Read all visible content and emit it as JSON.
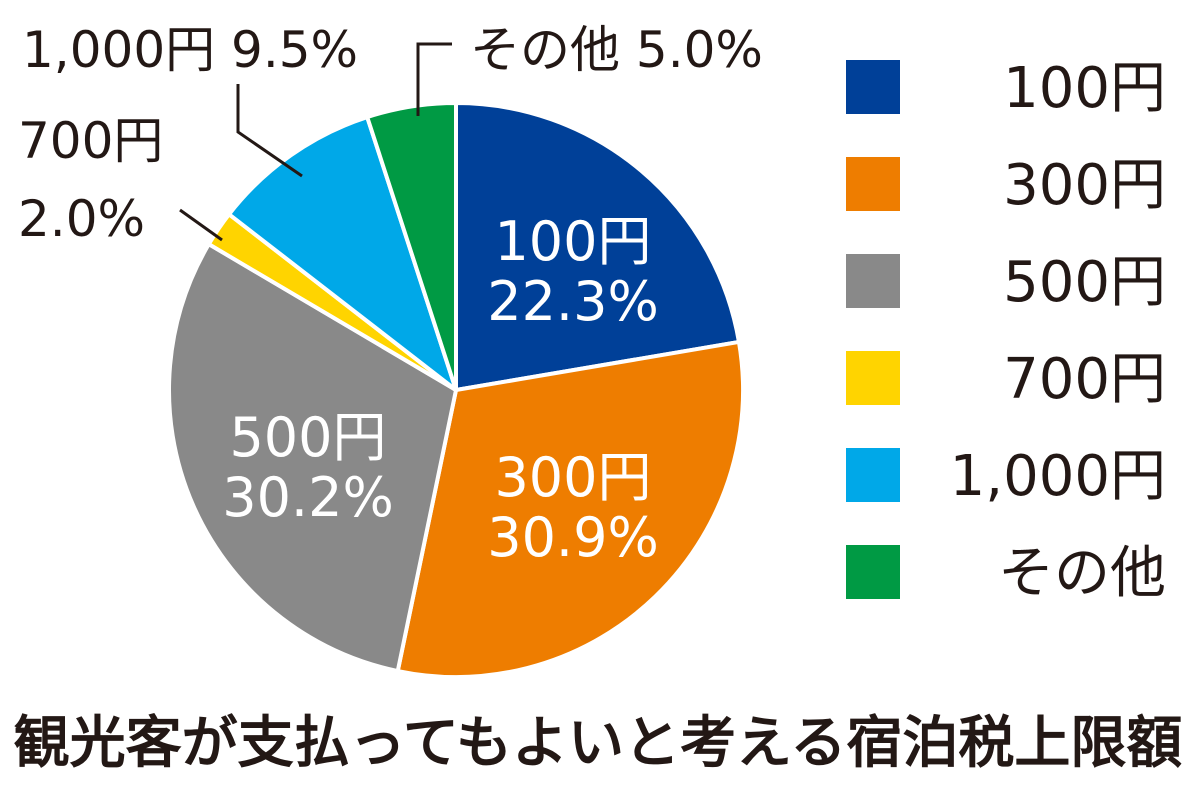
{
  "chart_data": {
    "type": "pie",
    "title": "観光客が支払ってもよいと考える宿泊税上限額",
    "unit": "%",
    "legend_position": "right",
    "slices": [
      {
        "label": "100円",
        "value": 22.3,
        "display": "22.3%",
        "color": "#004098",
        "label_placement": "inside"
      },
      {
        "label": "300円",
        "value": 30.9,
        "display": "30.9%",
        "color": "#ee7d00",
        "label_placement": "inside"
      },
      {
        "label": "500円",
        "value": 30.2,
        "display": "30.2%",
        "color": "#898989",
        "label_placement": "inside"
      },
      {
        "label": "700円",
        "value": 2.0,
        "display": "2.0%",
        "color": "#ffd400",
        "label_placement": "outside"
      },
      {
        "label": "1,000円",
        "value": 9.5,
        "display": "9.5%",
        "color": "#00a8e8",
        "label_placement": "outside"
      },
      {
        "label": "その他",
        "value": 5.0,
        "display": "5.0%",
        "color": "#009a44",
        "label_placement": "outside"
      }
    ]
  }
}
